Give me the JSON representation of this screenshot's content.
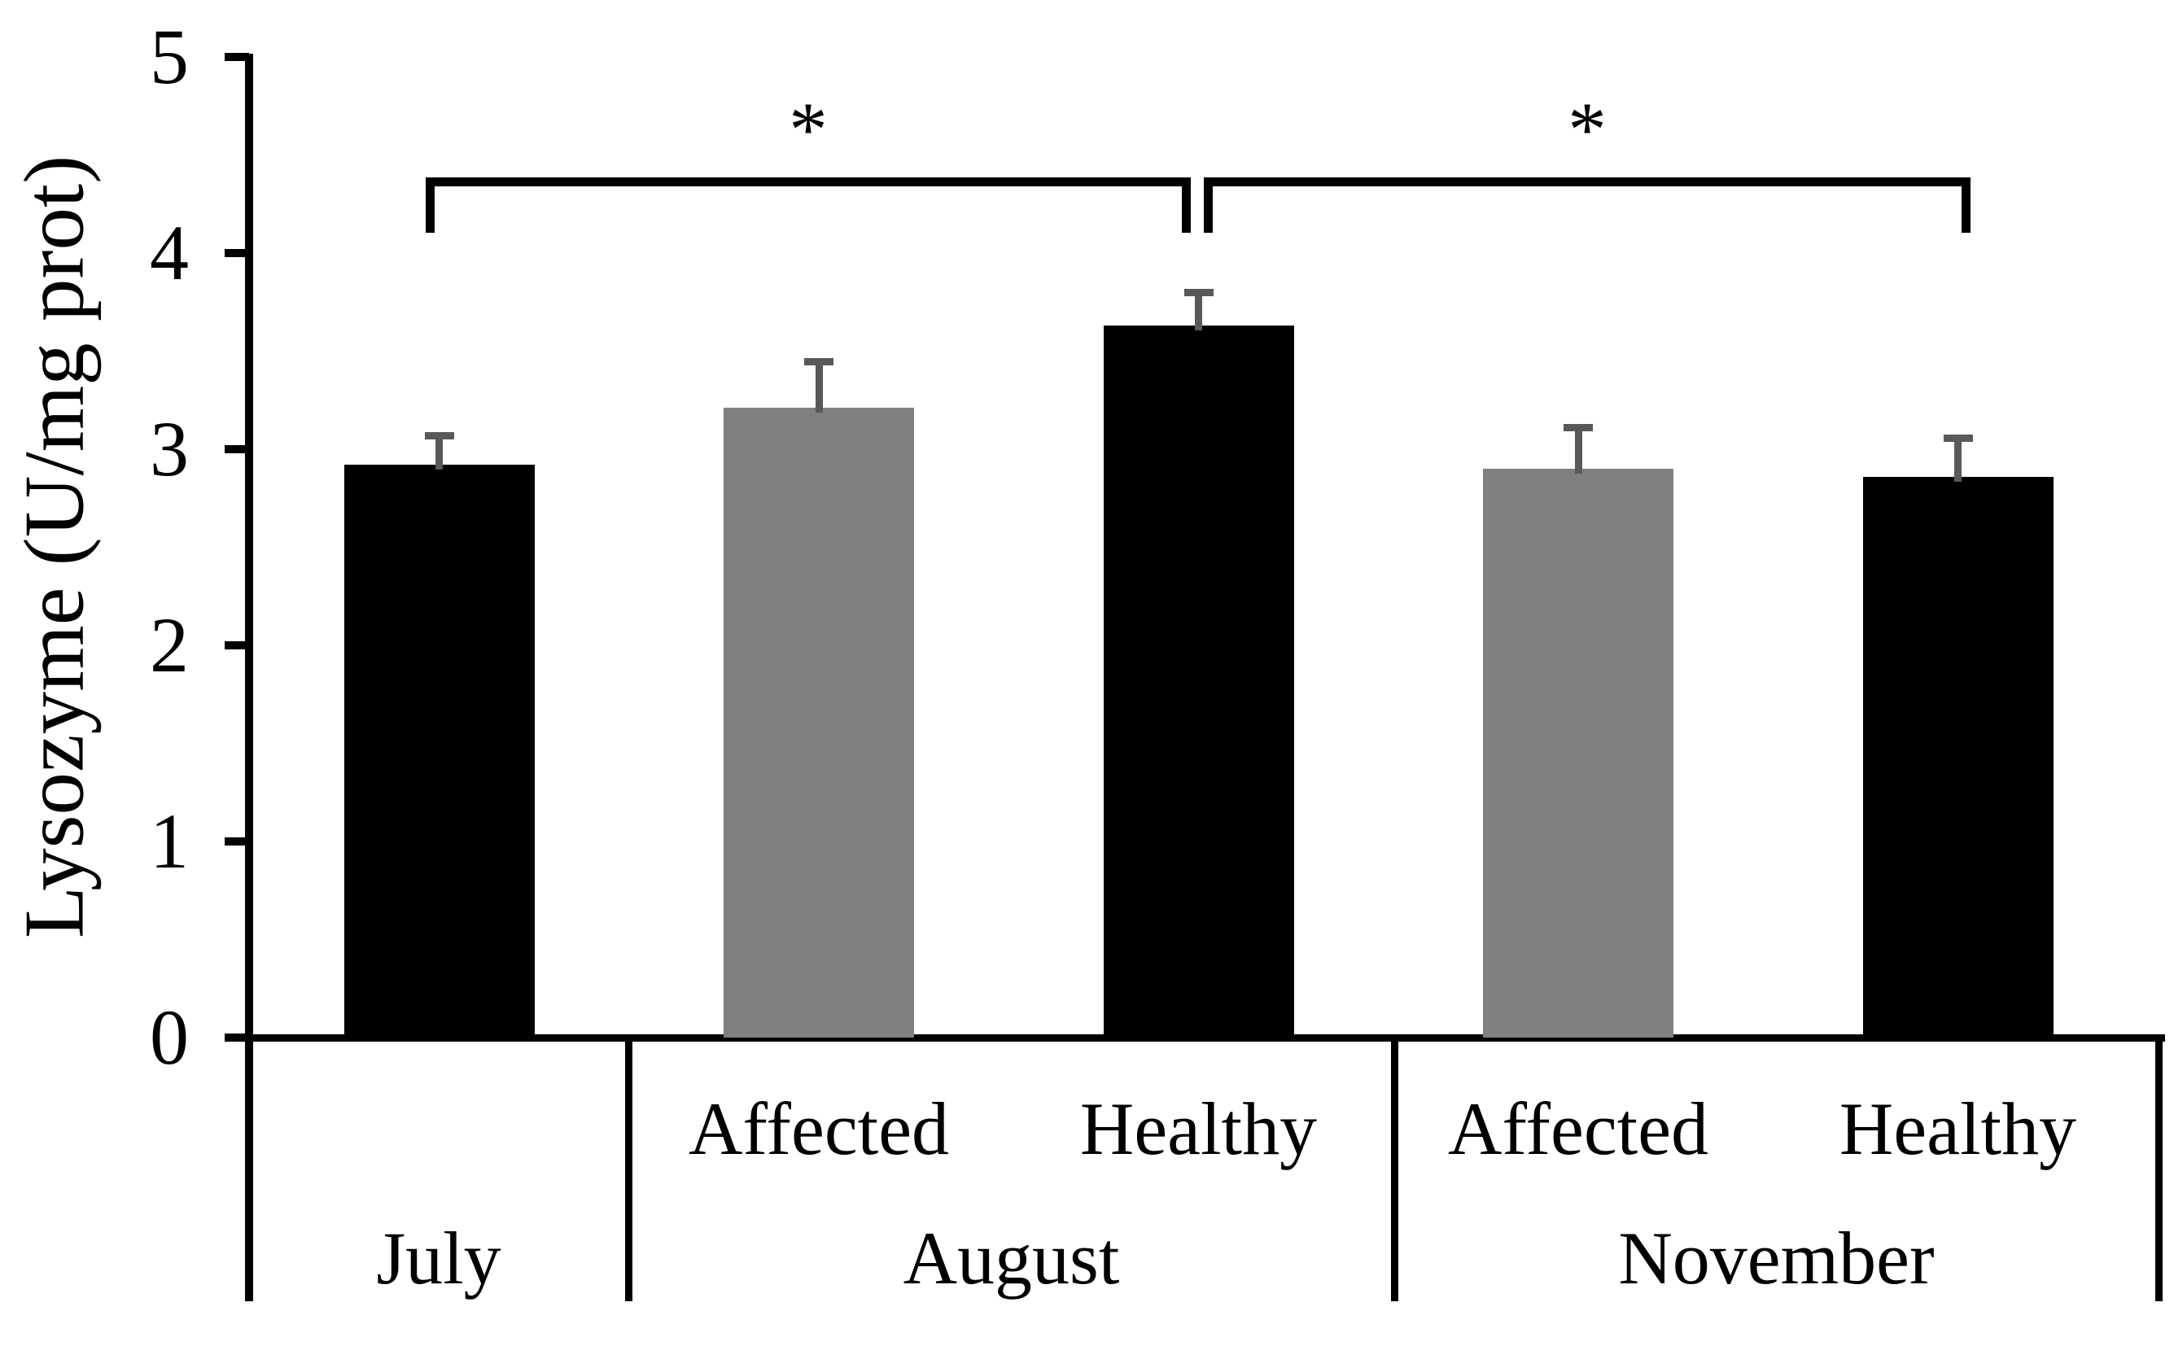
{
  "chart_data": {
    "type": "bar",
    "title": "",
    "xlabel": "",
    "ylabel": "Lysozyme (U/mg prot)",
    "ylim": [
      0,
      5
    ],
    "yticks": [
      0,
      1,
      2,
      3,
      4,
      5
    ],
    "grid": false,
    "legend_position": "none",
    "bars": [
      {
        "group": "July",
        "condition": "",
        "value": 2.92,
        "error_upper": 0.15,
        "color_key": "black"
      },
      {
        "group": "August",
        "condition": "Affected",
        "value": 3.21,
        "error_upper": 0.24,
        "color_key": "gray"
      },
      {
        "group": "August",
        "condition": "Healthy",
        "value": 3.63,
        "error_upper": 0.17,
        "color_key": "black"
      },
      {
        "group": "November",
        "condition": "Affected",
        "value": 2.9,
        "error_upper": 0.21,
        "color_key": "gray"
      },
      {
        "group": "November",
        "condition": "Healthy",
        "value": 2.86,
        "error_upper": 0.2,
        "color_key": "black"
      }
    ],
    "x_axis_table": {
      "condition_row": [
        "",
        "Affected",
        "Healthy",
        "Affected",
        "Healthy"
      ],
      "group_row": [
        "July",
        "August",
        "November"
      ]
    },
    "significance": [
      {
        "from_bar": 0,
        "to_bar": 2,
        "label": "*"
      },
      {
        "from_bar": 2,
        "to_bar": 4,
        "label": "*"
      }
    ],
    "colors": {
      "black": "#000000",
      "gray": "#808080",
      "error_bar": "#595959",
      "axis": "#000000",
      "background": "#ffffff"
    }
  }
}
